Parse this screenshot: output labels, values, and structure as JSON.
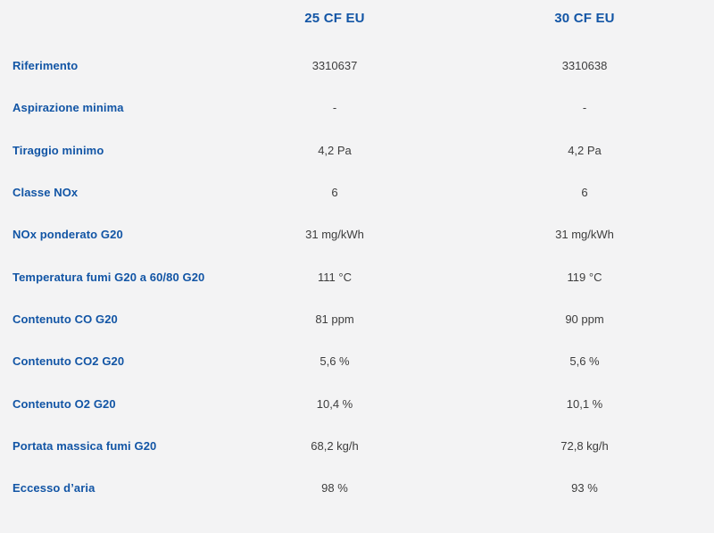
{
  "table": {
    "columns": [
      "25 CF EU",
      "30 CF EU"
    ],
    "rows": [
      {
        "label": "Riferimento",
        "values": [
          "3310637",
          "3310638"
        ]
      },
      {
        "label": "Aspirazione minima",
        "values": [
          "-",
          "-"
        ]
      },
      {
        "label": "Tiraggio minimo",
        "values": [
          "4,2 Pa",
          "4,2 Pa"
        ]
      },
      {
        "label": "Classe NOx",
        "values": [
          "6",
          "6"
        ]
      },
      {
        "label": "NOx ponderato G20",
        "values": [
          "31 mg/kWh",
          "31 mg/kWh"
        ]
      },
      {
        "label": "Temperatura fumi G20 a 60/80 G20",
        "values": [
          "111 °C",
          "119 °C"
        ]
      },
      {
        "label": "Contenuto CO G20",
        "values": [
          "81 ppm",
          "90 ppm"
        ]
      },
      {
        "label": "Contenuto CO2 G20",
        "values": [
          "5,6 %",
          "5,6 %"
        ]
      },
      {
        "label": "Contenuto O2 G20",
        "values": [
          "10,4 %",
          "10,1 %"
        ]
      },
      {
        "label": "Portata massica fumi G20",
        "values": [
          "68,2 kg/h",
          "72,8 kg/h"
        ]
      },
      {
        "label": "Eccesso d’aria",
        "values": [
          "98 %",
          "93 %"
        ]
      }
    ]
  },
  "colors": {
    "background": "#f3f3f4",
    "label_blue": "#1255a5",
    "value_gray": "#3d3d3d"
  }
}
